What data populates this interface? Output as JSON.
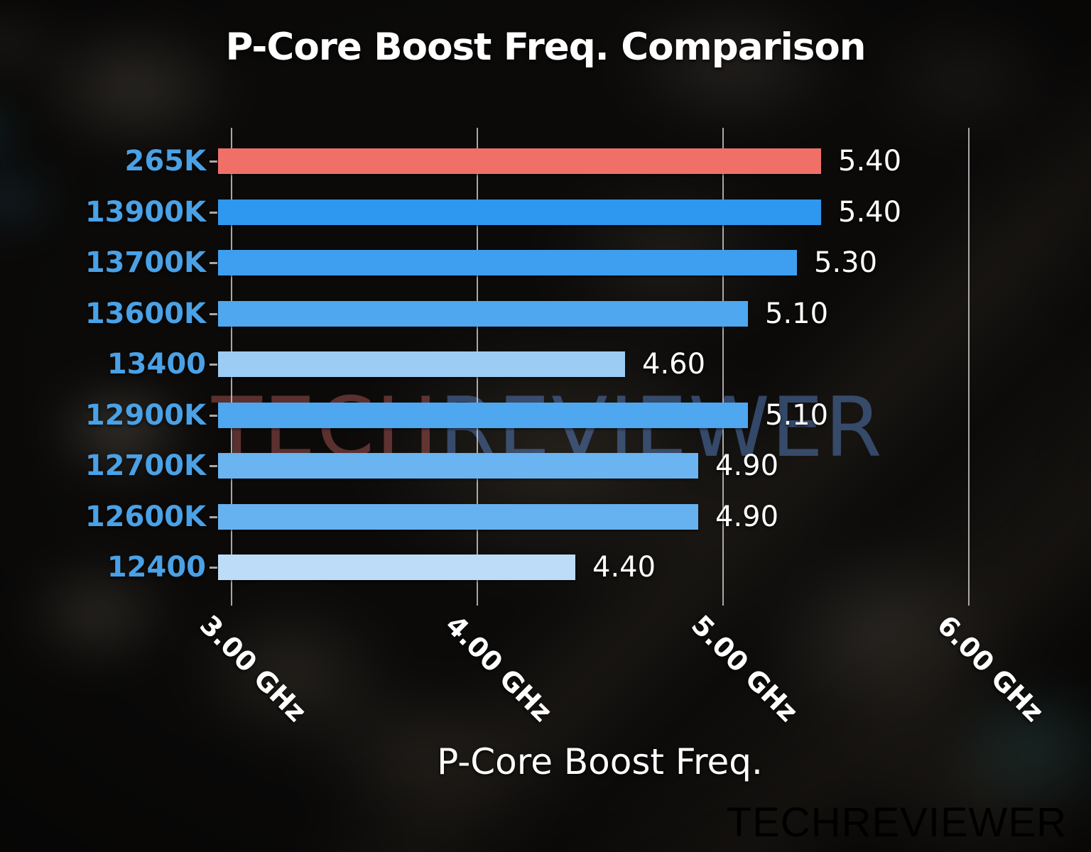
{
  "title": "P-Core Boost Freq. Comparison",
  "watermark": {
    "tech": "TECH",
    "reviewer": "REVIEWER"
  },
  "logo": {
    "tech": "TECH",
    "reviewer": "REVIEWER"
  },
  "colors": {
    "category_label": "#4aa1e6",
    "value_label": "#ffffff",
    "highlight_bar": "#f07068",
    "gridline": "#d2d0cd",
    "logo_tech": "#e8736f",
    "logo_reviewer": "#3a74c8"
  },
  "chart_data": {
    "type": "bar",
    "orientation": "horizontal",
    "title": "P-Core Boost Freq. Comparison",
    "xlabel": "P-Core Boost Freq.",
    "categories": [
      "265K",
      "13900K",
      "13700K",
      "13600K",
      "13400",
      "12900K",
      "12700K",
      "12600K",
      "12400"
    ],
    "values": [
      5.4,
      5.4,
      5.3,
      5.1,
      4.6,
      5.1,
      4.9,
      4.9,
      4.4
    ],
    "value_labels": [
      "5.40",
      "5.40",
      "5.30",
      "5.10",
      "4.60",
      "5.10",
      "4.90",
      "4.90",
      "4.40"
    ],
    "bar_colors": [
      "#f07068",
      "#2e97f0",
      "#3e9ff0",
      "#4ea7ef",
      "#9ccbf4",
      "#4ea7ef",
      "#69b4f1",
      "#66b2f0",
      "#bddcf8"
    ],
    "highlighted_category": "265K",
    "unit": "GHz",
    "x_ticks": [
      {
        "value": 3,
        "label": "3.00 GHz"
      },
      {
        "value": 4,
        "label": "4.00 GHz"
      },
      {
        "value": 5,
        "label": "5.00 GHz"
      },
      {
        "value": 6,
        "label": "6.00 GHz"
      }
    ],
    "xlim": [
      2.945,
      6.05
    ],
    "grid": true,
    "legend": null
  }
}
